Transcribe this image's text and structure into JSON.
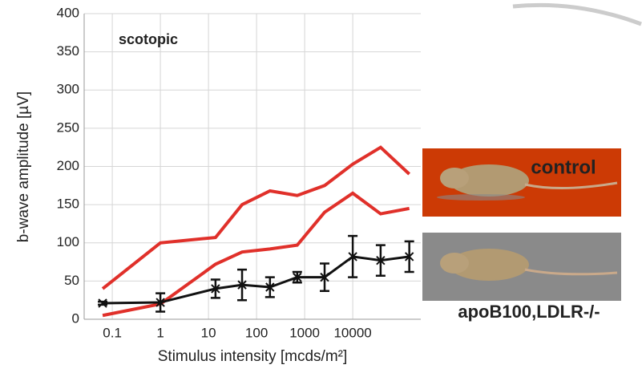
{
  "chart_data": {
    "type": "line",
    "annotation": "scotopic",
    "x_label": "Stimulus intensity [mcds/m²]",
    "y_label": "b-wave amplitude [µV]",
    "log_x": true,
    "grid": true,
    "xlim": [
      0.026,
      260000
    ],
    "xticks": [
      0.1,
      1,
      10,
      100,
      1000,
      10000
    ],
    "ylim": [
      0,
      400
    ],
    "yticks": [
      0,
      50,
      100,
      150,
      200,
      250,
      300,
      350,
      400
    ],
    "x": [
      0.063,
      1,
      14,
      50,
      190,
      700,
      2600,
      10000,
      38000,
      150000
    ],
    "series": [
      {
        "name": "control",
        "color": "#e0302a",
        "values": [
          40,
          100,
          107,
          150,
          168,
          162,
          175,
          203,
          225,
          190
        ]
      },
      {
        "name": "control",
        "color": "#e0302a",
        "values": [
          5,
          20,
          72,
          88,
          92,
          97,
          140,
          165,
          138,
          145
        ]
      },
      {
        "name": "apoB100,LDLR-/-",
        "color": "#111111",
        "values": [
          21,
          22,
          40,
          45,
          42,
          55,
          55,
          82,
          77,
          82
        ],
        "errors": [
          2,
          12,
          12,
          20,
          13,
          7,
          18,
          27,
          20,
          20
        ]
      }
    ]
  }
}
